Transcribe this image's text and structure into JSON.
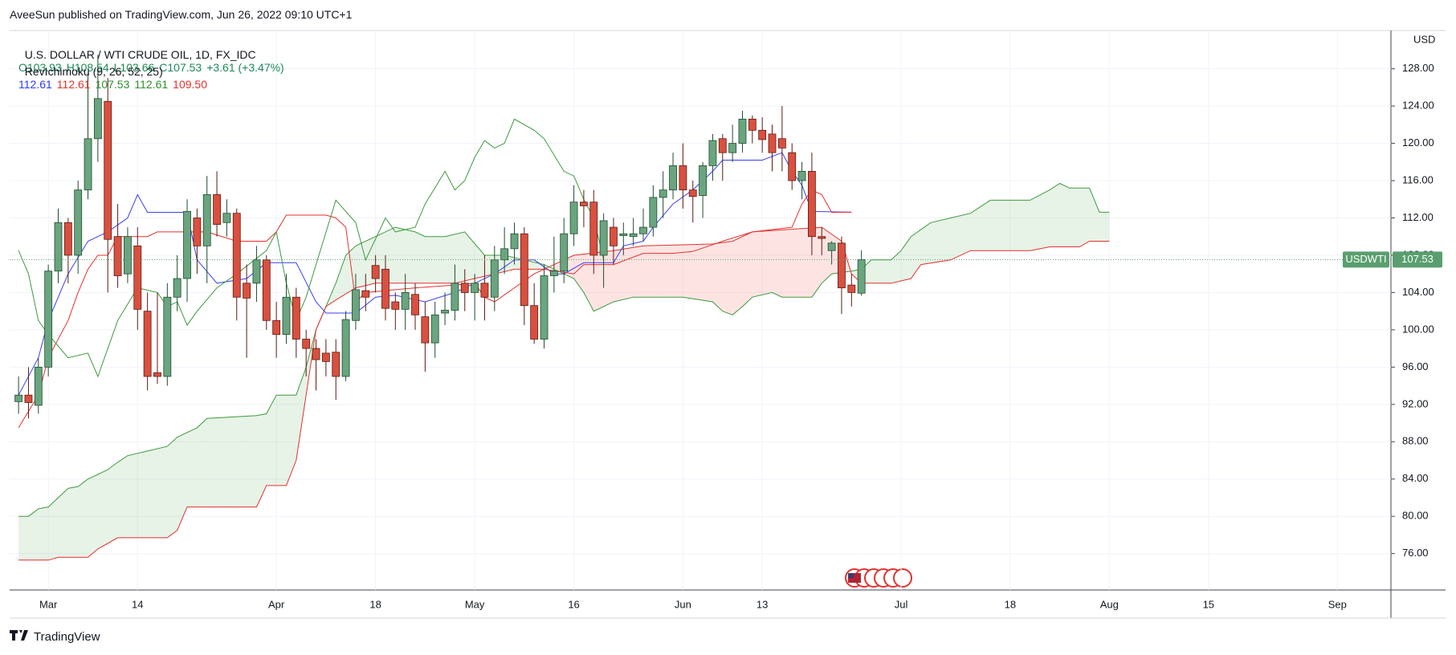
{
  "header": {
    "attribution": "AveeSun published on TradingView.com, Jun 26, 2022 09:10 UTC+1",
    "brand": "TradingView"
  },
  "chart_data": {
    "type": "candlestick",
    "symbol": "U.S. DOLLAR / WTI CRUDE OIL, 1D, FX_IDC",
    "ohlc_legend": [
      "O103.93",
      "H108.54",
      "L103.66",
      "C107.53",
      "+3.61 (+3.47%)"
    ],
    "ohlc_color": "#1e8a55",
    "indicator": {
      "name": "RevIchimoku (9, 26, 52, 25)",
      "values": [
        {
          "label": "112.61",
          "color": "#2e3cf0"
        },
        {
          "label": "112.61",
          "color": "#e3312d"
        },
        {
          "label": "107.53",
          "color": "#2f8f2f"
        },
        {
          "label": "112.61",
          "color": "#2f8f2f"
        },
        {
          "label": "109.50",
          "color": "#e3312d"
        }
      ]
    },
    "currency": "USD",
    "price_label": {
      "symbol": "USDWTI",
      "value": 107.53,
      "color": "#5a9e6f"
    },
    "up_color": "#6aa57f",
    "down_color": "#d9503f",
    "up_edge": "#1f4d2f",
    "down_edge": "#5e1a12",
    "open": [
      92.3,
      93,
      91.9,
      96,
      106.3,
      111.5,
      108,
      115,
      120.5,
      124.5,
      110,
      106,
      109,
      102,
      95.4,
      95,
      103.5,
      105.5,
      112,
      109,
      114.5,
      111.5,
      112.5,
      105,
      105,
      107.5,
      101,
      99.5,
      103.5,
      99,
      98,
      97.5,
      97.6,
      95,
      101,
      104.2,
      106.9,
      106.5,
      103,
      102.2,
      103.8,
      101.4,
      98.6,
      101.8,
      102.1,
      105,
      104,
      105,
      103.5,
      107.5,
      108.7,
      110.3,
      102.6,
      99,
      105.8,
      106.3,
      110.3,
      113.7,
      113.7,
      108,
      111,
      110.1,
      110,
      110.3,
      111,
      114.2,
      115,
      117.6,
      115,
      114.4,
      117.6,
      120.5,
      119,
      120,
      122.6,
      121.4,
      121,
      120.5,
      119,
      116,
      117,
      110,
      108.5,
      109.3,
      104.8,
      103.93
    ],
    "high": [
      95,
      96,
      97,
      107,
      113,
      112,
      116,
      127.5,
      129.5,
      127,
      113.5,
      111,
      111,
      104,
      104,
      105,
      108,
      114,
      113,
      116.5,
      117,
      114,
      113,
      107,
      109,
      108,
      103,
      106,
      104.5,
      100,
      99,
      99,
      99,
      102,
      106,
      106,
      108,
      108,
      104,
      106,
      105,
      103,
      103,
      104,
      107,
      106.5,
      106,
      108,
      109,
      111,
      111.5,
      111,
      105,
      107,
      110,
      112,
      115.5,
      115,
      115,
      112.5,
      112,
      111.5,
      112,
      113,
      115.5,
      117,
      119,
      120,
      116,
      118,
      121,
      121,
      122,
      123.5,
      123,
      122.8,
      122,
      124,
      120,
      118,
      119,
      111,
      109.5,
      110,
      106,
      108.54
    ],
    "low": [
      91,
      90.5,
      91,
      95,
      105,
      105,
      106,
      114,
      118,
      104,
      104.5,
      105,
      100,
      93.5,
      94.2,
      94,
      102,
      103,
      106,
      105,
      110,
      110,
      101,
      97,
      103,
      100,
      97,
      98.5,
      97,
      95,
      93.5,
      95,
      92.5,
      94.5,
      100,
      102,
      104,
      101,
      100,
      100,
      100,
      95.5,
      97,
      100.5,
      101,
      102,
      101,
      101,
      102,
      106,
      107,
      100.5,
      98.5,
      98,
      104,
      105,
      109,
      111,
      106,
      104.5,
      107,
      108,
      109,
      109.5,
      110,
      112,
      114,
      113,
      111.5,
      112,
      116,
      116,
      118,
      119,
      120,
      119,
      117,
      117,
      115,
      114,
      108,
      108,
      107,
      101.7,
      102.5,
      103.66
    ],
    "close": [
      93,
      92.2,
      96,
      106.3,
      111.5,
      108,
      115,
      120.5,
      124.8,
      109.7,
      105.8,
      110,
      102.2,
      95,
      95,
      103.5,
      105.5,
      112.7,
      109,
      114.5,
      111.3,
      112.5,
      103.5,
      103.4,
      107.5,
      101,
      99.5,
      103.5,
      99,
      98,
      96.8,
      96.6,
      95,
      101.1,
      104.3,
      103.5,
      105.5,
      102.3,
      102.2,
      104,
      101.6,
      98.6,
      101.6,
      102.1,
      105,
      104,
      105,
      103.5,
      107.5,
      108.7,
      110.3,
      102.6,
      99,
      105.8,
      106.3,
      110.3,
      113.7,
      113.3,
      108,
      111.7,
      109,
      110.3,
      110.3,
      111,
      114.2,
      115,
      117.6,
      115,
      114.3,
      117.6,
      120.3,
      119,
      120,
      122.6,
      121.4,
      120.4,
      119,
      119.5,
      116,
      117,
      110,
      109.8,
      109.3,
      104.5,
      104,
      107.53
    ],
    "lines": [
      {
        "color": "#3a3ff0",
        "x": [
          0,
          2,
          3,
          5,
          7,
          9,
          11,
          12,
          13,
          17,
          18,
          20,
          23,
          25,
          28,
          30,
          31,
          34,
          36,
          38,
          41,
          44,
          46,
          48,
          50,
          52,
          54,
          55,
          57,
          60,
          61,
          63,
          64,
          66,
          68,
          70,
          71,
          75,
          77,
          78,
          79,
          80,
          84
        ],
        "values": [
          93,
          97,
          101,
          106,
          109.5,
          110.5,
          112,
          114.5,
          112.6,
          112.6,
          107.5,
          105,
          105.5,
          107.2,
          107.2,
          103,
          101.8,
          101.8,
          103.5,
          103.7,
          103,
          104,
          105,
          106,
          107.5,
          107.5,
          106,
          106,
          107.2,
          107.2,
          109,
          109.5,
          111,
          113.5,
          115,
          117,
          118.2,
          118.2,
          119,
          117,
          115.5,
          112.7,
          112.61
        ]
      },
      {
        "color": "#e3312d",
        "x": [
          0,
          2,
          3,
          5,
          6,
          7,
          8,
          9,
          10,
          13,
          14,
          19,
          22,
          25,
          26,
          27,
          31,
          32,
          33,
          34,
          35,
          40,
          44,
          46,
          47,
          48,
          50,
          52,
          53,
          56,
          57,
          60,
          63,
          66,
          68,
          71,
          74,
          78,
          79,
          80,
          81,
          82,
          84
        ],
        "values": [
          89.5,
          93,
          97,
          101,
          104,
          106.5,
          108,
          108,
          110,
          110,
          110.5,
          110.5,
          109.5,
          109.5,
          110.5,
          112.3,
          112.3,
          112,
          111,
          103,
          104,
          104.5,
          104.8,
          105,
          103.5,
          103,
          104.5,
          106,
          106.5,
          106,
          107,
          107,
          108.2,
          108.2,
          108.4,
          109.5,
          110.5,
          111,
          113.5,
          115,
          114.5,
          112.6,
          112.61
        ]
      },
      {
        "color": "#3e9a3e",
        "x": [
          0,
          1,
          2,
          3,
          5,
          7,
          8,
          10,
          12,
          14,
          15,
          16,
          17,
          18,
          20,
          22,
          25,
          26,
          27,
          28,
          29,
          30,
          32,
          34,
          35,
          37,
          38,
          40,
          41,
          43,
          44,
          45,
          46,
          47,
          48,
          49,
          50,
          52,
          53,
          55,
          56,
          57,
          58,
          59
        ],
        "values": [
          108.5,
          106,
          101,
          99.5,
          97,
          97.5,
          95,
          101,
          104.5,
          104,
          102.5,
          103,
          100.5,
          102,
          104.5,
          106,
          108.5,
          110.5,
          105,
          101,
          103.5,
          107,
          113.9,
          111.5,
          107.5,
          112,
          110.5,
          111,
          113.5,
          117,
          115,
          116,
          118.5,
          120.3,
          119.5,
          120,
          122.6,
          121.4,
          120.5,
          117,
          116.5,
          114,
          112,
          107.53
        ]
      }
    ],
    "cloud": {
      "fill_up": "rgba(67,160,71,0.13)",
      "fill_down": "rgba(244,67,54,0.14)",
      "span_a": {
        "color": "#3e9a3e",
        "x": [
          0,
          1,
          2,
          3,
          4,
          5,
          6,
          7,
          8,
          9,
          10,
          11,
          13,
          15,
          16,
          18,
          19,
          24,
          25,
          26,
          28,
          29,
          30,
          32,
          33,
          34,
          36,
          38,
          40,
          41,
          43,
          45,
          47,
          49,
          51,
          53,
          55,
          56,
          57,
          58,
          60,
          62,
          64,
          67,
          70,
          71,
          72,
          73,
          74,
          76,
          77,
          80,
          81,
          82,
          84,
          85,
          86,
          88,
          89,
          90,
          92,
          94,
          96,
          98,
          102,
          104,
          105,
          106,
          108,
          109,
          110
        ],
        "values": [
          80,
          80,
          80.8,
          81,
          82,
          83,
          83.2,
          84,
          84.5,
          85,
          85.8,
          86.5,
          87,
          87.5,
          88.5,
          89.5,
          90.5,
          90.8,
          91,
          93,
          93,
          96,
          100,
          105,
          108,
          109,
          110,
          111,
          110.5,
          110,
          110,
          110.5,
          108,
          108,
          107.5,
          107,
          106,
          105.5,
          104,
          102,
          103,
          103.5,
          103.5,
          103.5,
          103,
          102,
          101.6,
          102.5,
          103.5,
          104,
          103.5,
          103.5,
          105,
          106,
          106.3,
          106.5,
          107.5,
          107.5,
          108.5,
          110,
          111.5,
          112,
          112.5,
          113.9,
          113.9,
          115,
          115.7,
          115.2,
          115.2,
          112.61,
          112.61
        ]
      },
      "span_b": {
        "color": "#e3312d",
        "x": [
          0,
          3,
          4,
          7,
          8,
          10,
          15,
          16,
          17,
          24,
          25,
          27,
          28,
          30,
          31,
          32,
          34,
          36,
          44,
          46,
          50,
          53,
          54,
          56,
          60,
          63,
          70,
          72,
          74,
          81,
          83,
          84,
          85,
          88,
          90,
          91,
          94,
          96,
          102,
          104,
          107,
          108,
          110
        ],
        "values": [
          75.3,
          75.3,
          75.6,
          75.6,
          76.5,
          77.7,
          77.7,
          78.5,
          81,
          81,
          83.3,
          83.3,
          86,
          100,
          102.5,
          103.2,
          104.5,
          105,
          105,
          105.5,
          106.5,
          106.5,
          107,
          108,
          108.5,
          109,
          109.2,
          109.5,
          110.5,
          111,
          109.5,
          106,
          105,
          105,
          105.5,
          107,
          107.5,
          108.5,
          108.5,
          108.9,
          108.9,
          109.5,
          109.5
        ]
      }
    },
    "xlim": [
      -0.9,
      138.4
    ],
    "xticks": [
      {
        "value": 3,
        "label": "Mar"
      },
      {
        "value": 12,
        "label": "14"
      },
      {
        "value": 26,
        "label": "Apr"
      },
      {
        "value": 36,
        "label": "18"
      },
      {
        "value": 46,
        "label": "May"
      },
      {
        "value": 56,
        "label": "16"
      },
      {
        "value": 67,
        "label": "Jun"
      },
      {
        "value": 75,
        "label": "13"
      },
      {
        "value": 89,
        "label": "Jul"
      },
      {
        "value": 100,
        "label": "18"
      },
      {
        "value": 110,
        "label": "Aug"
      },
      {
        "value": 120,
        "label": "15"
      },
      {
        "value": 133,
        "label": "Sep"
      }
    ],
    "ylim": [
      72.1,
      132.1
    ],
    "yticks": [
      {
        "value": 76,
        "label": "76.00"
      },
      {
        "value": 80,
        "label": "80.00"
      },
      {
        "value": 84,
        "label": "84.00"
      },
      {
        "value": 88,
        "label": "88.00"
      },
      {
        "value": 92,
        "label": "92.00"
      },
      {
        "value": 96,
        "label": "96.00"
      },
      {
        "value": 100,
        "label": "100.00"
      },
      {
        "value": 104,
        "label": "104.00"
      },
      {
        "value": 108,
        "label": "108.00"
      },
      {
        "value": 112,
        "label": "112.00"
      },
      {
        "value": 116,
        "label": "116.00"
      },
      {
        "value": 120,
        "label": "120.00"
      },
      {
        "value": 124,
        "label": "124.00"
      },
      {
        "value": 128,
        "label": "128.00"
      }
    ],
    "grid": true
  }
}
